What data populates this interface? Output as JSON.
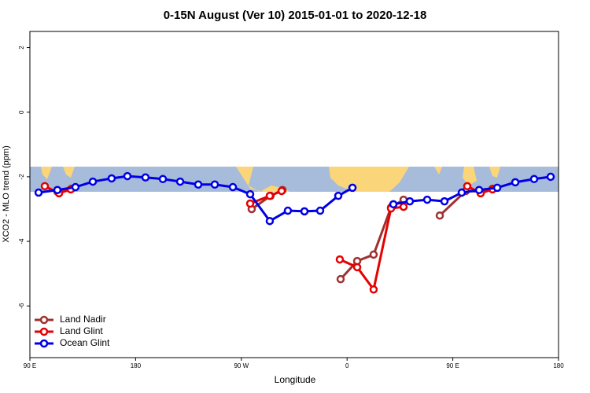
{
  "chart_data": {
    "type": "line",
    "title": "0-15N August (Ver 10)   2015-01-01 to 2020-12-18",
    "x_label": "Longitude",
    "y_label": "XCO2 - MLO trend (ppm)",
    "xlim": [
      90,
      540
    ],
    "ylim": [
      -7.6,
      2.5
    ],
    "xticks": [
      {
        "value": 90,
        "label": "90 E"
      },
      {
        "value": 180,
        "label": "180"
      },
      {
        "value": 270,
        "label": "90 W"
      },
      {
        "value": 360,
        "label": "0"
      },
      {
        "value": 450,
        "label": "90 E"
      },
      {
        "value": 540,
        "label": "180"
      }
    ],
    "yticks": [
      2,
      0,
      -2,
      -4,
      -6
    ],
    "legend": "bottom-left",
    "series": [
      {
        "name": "Land Nadir",
        "color": "#a03030",
        "x": [
          113.4,
          125.5,
          null,
          278.8,
          294.9,
          305,
          null,
          354.5,
          368.6,
          382.6,
          397.4,
          408.1,
          null,
          438.9,
          461,
          473.7,
          483.8
        ],
        "values": [
          -2.46,
          -2.37,
          null,
          -3.0,
          -2.59,
          -2.41,
          null,
          -5.17,
          -4.61,
          -4.41,
          -2.95,
          -2.71,
          null,
          -3.2,
          -2.44,
          -2.46,
          -2.37
        ]
      },
      {
        "name": "Land Glint",
        "color": "#e60000",
        "x": [
          102.7,
          114.8,
          124.8,
          null,
          277.5,
          294.2,
          304.3,
          null,
          353.8,
          368.6,
          382.6,
          397.4,
          408.1,
          null,
          462.3,
          473.7,
          483.8
        ],
        "values": [
          -2.29,
          -2.51,
          -2.39,
          null,
          -2.83,
          -2.59,
          -2.44,
          null,
          -4.56,
          -4.8,
          -5.49,
          -2.98,
          -2.93,
          null,
          -2.29,
          -2.51,
          -2.39
        ]
      },
      {
        "name": "Ocean Glint",
        "color": "#0000e6",
        "x": [
          97.4,
          113.4,
          128.8,
          143.6,
          159.6,
          173,
          188.4,
          203.2,
          217.9,
          233.3,
          247.4,
          262.8,
          277.5,
          294.2,
          309.6,
          323.7,
          337.1,
          352.5,
          364.6,
          null,
          399.4,
          413.4,
          428.2,
          442.9,
          457.6,
          472.4,
          487.8,
          503.2,
          519.2,
          533.3
        ],
        "values": [
          -2.49,
          -2.41,
          -2.32,
          -2.15,
          -2.05,
          -1.98,
          -2.02,
          -2.07,
          -2.15,
          -2.24,
          -2.24,
          -2.32,
          -2.54,
          -3.37,
          -3.05,
          -3.07,
          -3.05,
          -2.59,
          -2.34,
          null,
          -2.85,
          -2.76,
          -2.71,
          -2.76,
          -2.49,
          -2.41,
          -2.34,
          -2.17,
          -2.07,
          -2.0
        ]
      }
    ]
  }
}
